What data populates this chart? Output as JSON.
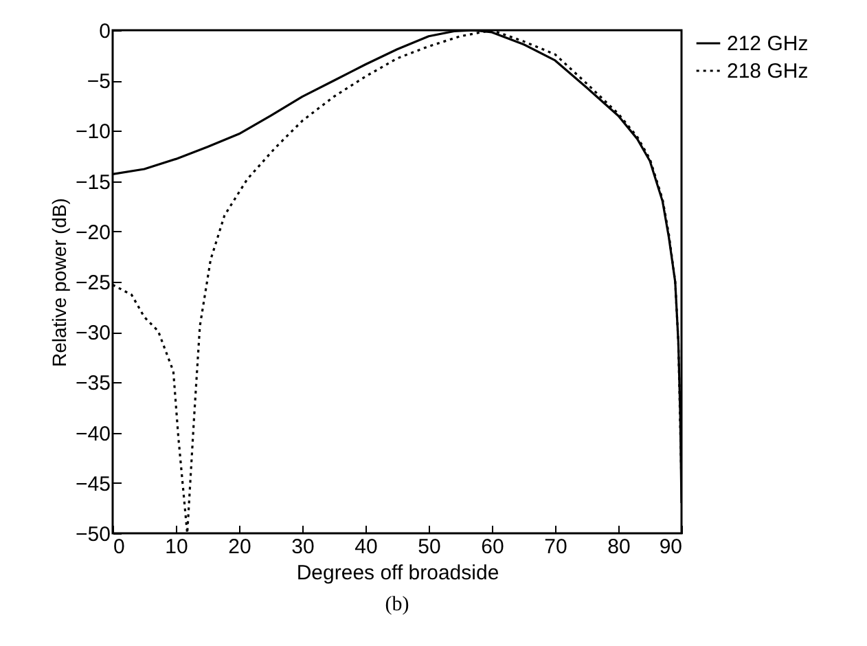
{
  "chart_data": {
    "type": "line",
    "xlabel": "Degrees   off   broadside",
    "ylabel": "Relative   power   (dB)",
    "annotations": [
      "(b)"
    ],
    "xlim": [
      0,
      90
    ],
    "xticks": [
      0,
      10,
      20,
      30,
      40,
      50,
      60,
      70,
      80,
      90
    ],
    "ylim": [
      -50,
      0
    ],
    "yticks": [
      0,
      -5,
      -10,
      -15,
      -20,
      -25,
      -30,
      -35,
      -40,
      -45,
      -50
    ],
    "legend": "top right",
    "series": [
      {
        "name": "212 GHz",
        "color": "#000000",
        "line_style": "solid",
        "x": [
          0,
          5,
          10,
          15,
          20,
          25,
          30,
          35,
          40,
          45,
          50,
          54,
          57,
          60,
          65,
          70,
          75,
          80,
          83,
          85,
          87,
          88,
          89,
          89.5,
          89.8,
          90
        ],
        "values": [
          -14.3,
          -13.8,
          -12.8,
          -11.6,
          -10.3,
          -8.5,
          -6.6,
          -5,
          -3.4,
          -1.9,
          -0.6,
          -0.1,
          0,
          -0.2,
          -1.4,
          -3,
          -5.7,
          -8.5,
          -10.8,
          -13,
          -17,
          -20.6,
          -25,
          -31,
          -38.3,
          -47
        ]
      },
      {
        "name": "218 GHz",
        "color": "#000000",
        "line_style": "dotted",
        "x": [
          0,
          3,
          5,
          7.2,
          9.6,
          10.4,
          11.8,
          12.9,
          13.8,
          15.5,
          17.7,
          21.3,
          25.7,
          30,
          35,
          40,
          45,
          50,
          55,
          60,
          65,
          70,
          75,
          80,
          83,
          85,
          87,
          88,
          89,
          89.5,
          90
        ],
        "values": [
          -25.3,
          -26.3,
          -28.5,
          -29.9,
          -33.9,
          -40.5,
          -50,
          -38.3,
          -29.4,
          -22.8,
          -18.4,
          -14.8,
          -11.7,
          -9,
          -6.6,
          -4.6,
          -2.8,
          -1.6,
          -0.6,
          0,
          -1.1,
          -2.4,
          -5.3,
          -8.3,
          -10.6,
          -12.8,
          -16.8,
          -20.3,
          -25,
          -31,
          -45
        ]
      }
    ]
  }
}
